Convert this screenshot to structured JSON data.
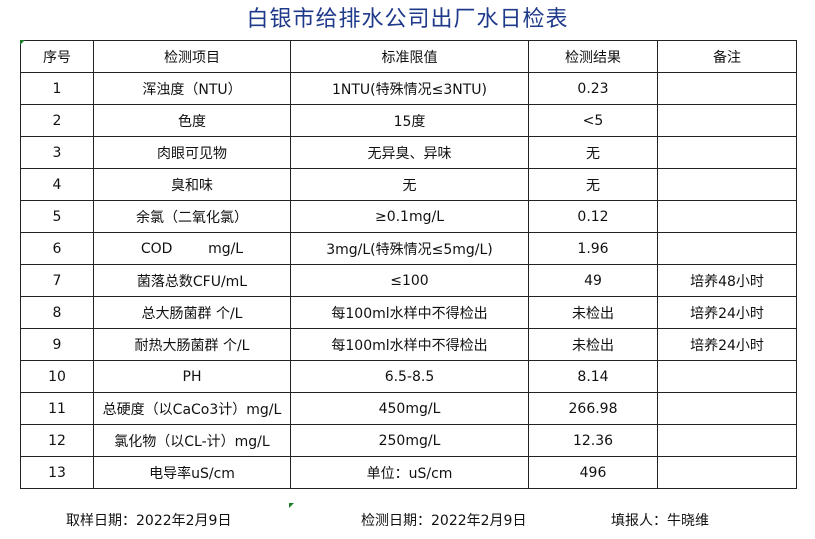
{
  "title": "白银市给排水公司出厂水日检表",
  "headers": [
    "序号",
    "检测项目",
    "标准限值",
    "检测结果",
    "备注"
  ],
  "rows": [
    [
      "1",
      "浑浊度（NTU）",
      "1NTU(特殊情况≤3NTU)",
      "0.23",
      ""
    ],
    [
      "2",
      "色度",
      "15度",
      "<5",
      ""
    ],
    [
      "3",
      "肉眼可见物",
      "无异臭、异味",
      "无",
      ""
    ],
    [
      "4",
      "臭和味",
      "无",
      "无",
      ""
    ],
    [
      "5",
      "余氯（二氧化氯）",
      "≥0.1mg/L",
      "0.12",
      ""
    ],
    [
      "6",
      "COD        mg/L",
      "3mg/L(特殊情况≤5mg/L)",
      "1.96",
      ""
    ],
    [
      "7",
      "菌落总数CFU/mL",
      "≤100",
      "49",
      "培养48小时"
    ],
    [
      "8",
      "总大肠菌群 个/L",
      "每100ml水样中不得检出",
      "未检出",
      "培养24小时"
    ],
    [
      "9",
      "耐热大肠菌群 个/L",
      "每100ml水样中不得检出",
      "未检出",
      "培养24小时"
    ],
    [
      "10",
      "PH",
      "6.5-8.5",
      "8.14",
      ""
    ],
    [
      "11",
      "总硬度（以CaCo3计）mg/L",
      "450mg/L",
      "266.98",
      ""
    ],
    [
      "12",
      "氯化物（以CL-计）mg/L",
      "250mg/L",
      "12.36",
      ""
    ],
    [
      "13",
      "电导率uS/cm",
      "单位：uS/cm",
      "496",
      ""
    ]
  ],
  "footer": {
    "sampling_date": "取样日期：2022年2月9日",
    "test_date": "检测日期：2022年2月9日",
    "reporter": "填报人：牛晓维"
  }
}
